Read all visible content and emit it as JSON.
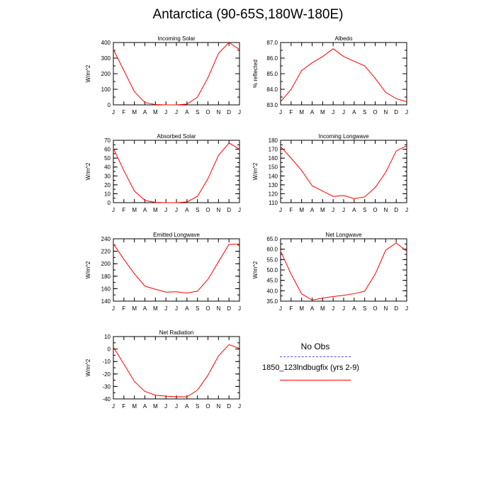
{
  "title": "Antarctica (90-65S,180W-180E)",
  "months": [
    "J",
    "F",
    "M",
    "A",
    "M",
    "J",
    "J",
    "A",
    "S",
    "O",
    "N",
    "D",
    "J"
  ],
  "legend": {
    "obs_label": "No Obs",
    "model_label": "1850_123lndbugfix (yrs 2-9)",
    "model_color": "#ff0000",
    "obs_color": "#5555ee"
  },
  "chart_data": [
    {
      "type": "line",
      "title": "Incoming Solar",
      "ylabel": "W/m^2",
      "ylim": [
        0,
        400
      ],
      "yticks": [
        "0",
        "100",
        "200",
        "300",
        "400"
      ],
      "ytick_values": [
        0,
        100,
        200,
        300,
        400
      ],
      "yminor_step": 50,
      "categories": [
        "J",
        "F",
        "M",
        "A",
        "M",
        "J",
        "J",
        "A",
        "S",
        "O",
        "N",
        "D",
        "J"
      ],
      "series": [
        {
          "values": [
            355,
            220,
            85,
            15,
            2,
            0,
            0,
            5,
            50,
            175,
            330,
            400,
            355
          ]
        }
      ]
    },
    {
      "type": "line",
      "title": "Albedo",
      "ylabel": "% reflected",
      "ylim": [
        83.0,
        87.0
      ],
      "yticks": [
        "83.0",
        "84.0",
        "85.0",
        "86.0",
        "87.0"
      ],
      "ytick_values": [
        83.0,
        84.0,
        85.0,
        86.0,
        87.0
      ],
      "yminor_step": 0.5,
      "categories": [
        "J",
        "F",
        "M",
        "A",
        "M",
        "J",
        "J",
        "A",
        "S",
        "O",
        "N",
        "D",
        "J"
      ],
      "series": [
        {
          "values": [
            83.2,
            84.0,
            85.2,
            85.7,
            86.1,
            86.6,
            86.1,
            85.8,
            85.5,
            84.7,
            83.8,
            83.4,
            83.2
          ]
        }
      ]
    },
    {
      "type": "line",
      "title": "Absorbed Solar",
      "ylabel": "W/m^2",
      "ylim": [
        0,
        70
      ],
      "yticks": [
        "0",
        "10",
        "20",
        "30",
        "40",
        "50",
        "60",
        "70"
      ],
      "ytick_values": [
        0,
        10,
        20,
        30,
        40,
        50,
        60,
        70
      ],
      "yminor_step": 5,
      "categories": [
        "J",
        "F",
        "M",
        "A",
        "M",
        "J",
        "J",
        "A",
        "S",
        "O",
        "N",
        "D",
        "J"
      ],
      "series": [
        {
          "values": [
            61,
            36,
            13,
            2.5,
            0.3,
            0,
            0,
            0.8,
            7,
            27,
            53,
            67,
            60
          ]
        }
      ]
    },
    {
      "type": "line",
      "title": "Incoming Longwave",
      "ylabel": "W/m^2",
      "ylim": [
        110,
        180
      ],
      "yticks": [
        "110",
        "120",
        "130",
        "140",
        "150",
        "160",
        "170",
        "180"
      ],
      "ytick_values": [
        110,
        120,
        130,
        140,
        150,
        160,
        170,
        180
      ],
      "yminor_step": 5,
      "categories": [
        "J",
        "F",
        "M",
        "A",
        "M",
        "J",
        "J",
        "A",
        "S",
        "O",
        "N",
        "D",
        "J"
      ],
      "series": [
        {
          "values": [
            173,
            160,
            146,
            129,
            123,
            117,
            118,
            114.5,
            116.5,
            127,
            144,
            168,
            174
          ]
        }
      ]
    },
    {
      "type": "line",
      "title": "Emitted Longwave",
      "ylabel": "W/m^2",
      "ylim": [
        140,
        240
      ],
      "yticks": [
        "140",
        "160",
        "180",
        "200",
        "220",
        "240"
      ],
      "ytick_values": [
        140,
        160,
        180,
        200,
        220,
        240
      ],
      "yminor_step": 10,
      "categories": [
        "J",
        "F",
        "M",
        "A",
        "M",
        "J",
        "J",
        "A",
        "S",
        "O",
        "N",
        "D",
        "J"
      ],
      "series": [
        {
          "values": [
            232,
            207,
            184,
            164,
            159,
            154.5,
            155,
            153,
            156,
            175,
            203,
            231,
            231.5
          ]
        }
      ]
    },
    {
      "type": "line",
      "title": "Net Longwave",
      "ylabel": "W/m^2",
      "ylim": [
        35.0,
        65.0
      ],
      "yticks": [
        "35.0",
        "40.0",
        "45.0",
        "50.0",
        "55.0",
        "60.0",
        "65.0"
      ],
      "ytick_values": [
        35,
        40,
        45,
        50,
        55,
        60,
        65
      ],
      "yminor_step": 2.5,
      "categories": [
        "J",
        "F",
        "M",
        "A",
        "M",
        "J",
        "J",
        "A",
        "S",
        "O",
        "N",
        "D",
        "J"
      ],
      "series": [
        {
          "values": [
            59,
            48,
            38.5,
            35.5,
            36.5,
            37.2,
            37.8,
            38.6,
            39.8,
            48,
            59.5,
            63,
            59
          ]
        }
      ]
    },
    {
      "type": "line",
      "title": "Net Radiation",
      "ylabel": "W/m^2",
      "ylim": [
        -40,
        10
      ],
      "yticks": [
        "-40",
        "-30",
        "-20",
        "-10",
        "0",
        "10"
      ],
      "ytick_values": [
        -40,
        -30,
        -20,
        -10,
        0,
        10
      ],
      "yminor_step": 5,
      "categories": [
        "J",
        "F",
        "M",
        "A",
        "M",
        "J",
        "J",
        "A",
        "S",
        "O",
        "N",
        "D",
        "J"
      ],
      "series": [
        {
          "values": [
            1.5,
            -12,
            -26,
            -34,
            -37,
            -37.8,
            -38.2,
            -38.3,
            -33,
            -21,
            -5.5,
            3.5,
            0.5
          ]
        }
      ]
    }
  ]
}
